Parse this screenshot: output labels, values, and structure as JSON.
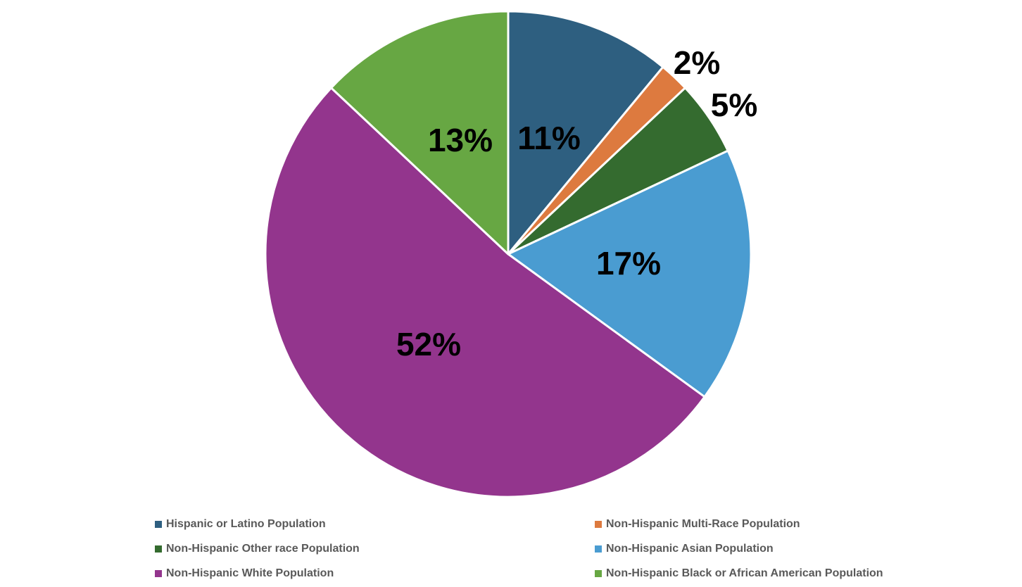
{
  "chart_data": {
    "type": "pie",
    "categories": [
      "Hispanic or Latino Population",
      "Non-Hispanic Multi-Race Population",
      "Non-Hispanic Other race Population",
      "Non-Hispanic Asian Population",
      "Non-Hispanic White Population",
      "Non-Hispanic Black or African American Population"
    ],
    "values": [
      11,
      2,
      5,
      17,
      52,
      13
    ],
    "data_labels": [
      "11%",
      "2%",
      "5%",
      "17%",
      "52%",
      "13%"
    ],
    "colors": [
      "#2e5f80",
      "#dd7a3f",
      "#346b2f",
      "#4a9cd1",
      "#93358d",
      "#67a743"
    ],
    "start_angle_deg": 0,
    "direction": "clockwise",
    "legend_position": "bottom",
    "title": ""
  }
}
